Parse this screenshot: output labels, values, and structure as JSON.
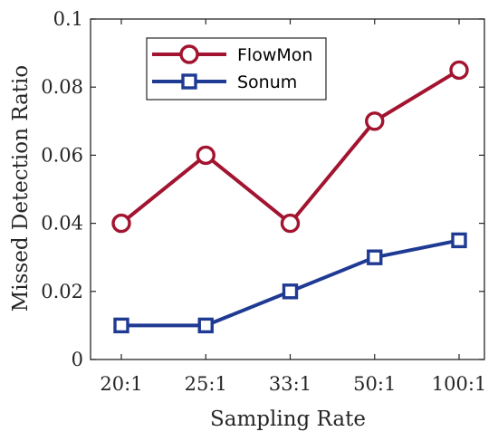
{
  "chart_data": {
    "type": "line",
    "xlabel": "Sampling Rate",
    "ylabel": "Missed Detection Ratio",
    "categories": [
      "20:1",
      "25:1",
      "33:1",
      "50:1",
      "100:1"
    ],
    "ylim": [
      0,
      0.1
    ],
    "yticks": [
      "0",
      "0.02",
      "0.04",
      "0.06",
      "0.08",
      "0.1"
    ],
    "yticks_values": [
      0,
      0.02,
      0.04,
      0.06,
      0.08,
      0.1
    ],
    "grid": false,
    "legend_position": "top-left",
    "series": [
      {
        "name": "FlowMon",
        "values": [
          0.04,
          0.06,
          0.04,
          0.07,
          0.085
        ],
        "color": "#A2142F",
        "marker": "circle"
      },
      {
        "name": "Sonum",
        "values": [
          0.01,
          0.01,
          0.02,
          0.03,
          0.035
        ],
        "color": "#1F3A93",
        "marker": "square"
      }
    ]
  }
}
